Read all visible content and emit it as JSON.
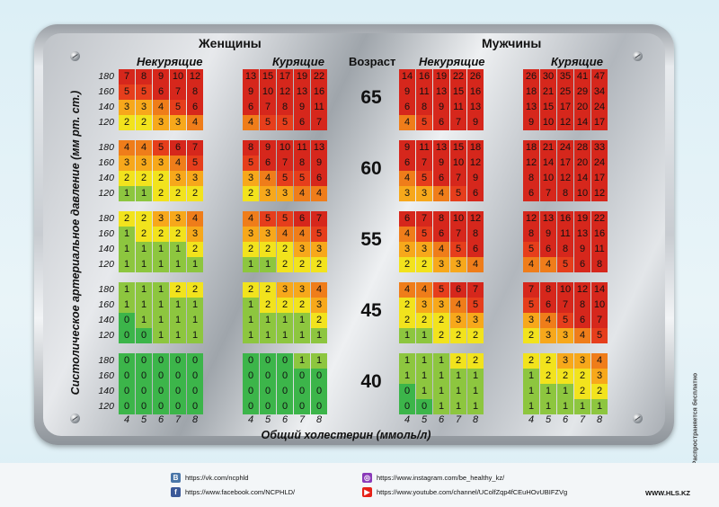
{
  "header": {
    "women": "Женщины",
    "men": "Мужчины",
    "nonsmoking": "Некурящие",
    "smoking": "Курящие",
    "age_label": "Возраст"
  },
  "colors": {
    "0": "#3cb54a",
    "1": "#8dc63f",
    "2": "#f2e31d",
    "3": "#f7a81b",
    "4": "#ef7d1a",
    "5": "#e63e1c",
    "high": "#d6271c"
  },
  "chart_data": {
    "type": "table",
    "xlabel": "Общий холестерин (ммоль/л)",
    "ylabel": "Систолическое артериальное давление (мм рт. ст.)",
    "cholesterol": [
      4,
      5,
      6,
      7,
      8
    ],
    "pressure": [
      180,
      160,
      140,
      120
    ],
    "ages": [
      65,
      60,
      55,
      45,
      40
    ],
    "panels": [
      {
        "group": "women",
        "smoker": false,
        "grids": [
          [
            [
              7,
              8,
              9,
              10,
              12
            ],
            [
              5,
              5,
              6,
              7,
              8
            ],
            [
              3,
              3,
              4,
              5,
              6
            ],
            [
              2,
              2,
              3,
              3,
              4
            ]
          ],
          [
            [
              4,
              4,
              5,
              6,
              7
            ],
            [
              3,
              3,
              3,
              4,
              5
            ],
            [
              2,
              2,
              2,
              3,
              3
            ],
            [
              1,
              1,
              2,
              2,
              2
            ]
          ],
          [
            [
              2,
              2,
              3,
              3,
              4
            ],
            [
              1,
              2,
              2,
              2,
              3
            ],
            [
              1,
              1,
              1,
              1,
              2
            ],
            [
              1,
              1,
              1,
              1,
              1
            ]
          ],
          [
            [
              1,
              1,
              1,
              2,
              2
            ],
            [
              1,
              1,
              1,
              1,
              1
            ],
            [
              0,
              1,
              1,
              1,
              1
            ],
            [
              0,
              0,
              1,
              1,
              1
            ]
          ],
          [
            [
              0,
              0,
              0,
              0,
              0
            ],
            [
              0,
              0,
              0,
              0,
              0
            ],
            [
              0,
              0,
              0,
              0,
              0
            ],
            [
              0,
              0,
              0,
              0,
              0
            ]
          ]
        ]
      },
      {
        "group": "women",
        "smoker": true,
        "grids": [
          [
            [
              13,
              15,
              17,
              19,
              22
            ],
            [
              9,
              10,
              12,
              13,
              16
            ],
            [
              6,
              7,
              8,
              9,
              11
            ],
            [
              4,
              5,
              5,
              6,
              7
            ]
          ],
          [
            [
              8,
              9,
              10,
              11,
              13
            ],
            [
              5,
              6,
              7,
              8,
              9
            ],
            [
              3,
              4,
              5,
              5,
              6
            ],
            [
              2,
              3,
              3,
              4,
              4
            ]
          ],
          [
            [
              4,
              5,
              5,
              6,
              7
            ],
            [
              3,
              3,
              4,
              4,
              5
            ],
            [
              2,
              2,
              2,
              3,
              3
            ],
            [
              1,
              1,
              2,
              2,
              2
            ]
          ],
          [
            [
              2,
              2,
              3,
              3,
              4
            ],
            [
              1,
              2,
              2,
              2,
              3
            ],
            [
              1,
              1,
              1,
              1,
              2
            ],
            [
              1,
              1,
              1,
              1,
              1
            ]
          ],
          [
            [
              0,
              0,
              0,
              1,
              1
            ],
            [
              0,
              0,
              0,
              0,
              0
            ],
            [
              0,
              0,
              0,
              0,
              0
            ],
            [
              0,
              0,
              0,
              0,
              0
            ]
          ]
        ]
      },
      {
        "group": "men",
        "smoker": false,
        "grids": [
          [
            [
              14,
              16,
              19,
              22,
              26
            ],
            [
              9,
              11,
              13,
              15,
              16
            ],
            [
              6,
              8,
              9,
              11,
              13
            ],
            [
              4,
              5,
              6,
              7,
              9
            ]
          ],
          [
            [
              9,
              11,
              13,
              15,
              18
            ],
            [
              6,
              7,
              9,
              10,
              12
            ],
            [
              4,
              5,
              6,
              7,
              9
            ],
            [
              3,
              3,
              4,
              5,
              6
            ]
          ],
          [
            [
              6,
              7,
              8,
              10,
              12
            ],
            [
              4,
              5,
              6,
              7,
              8
            ],
            [
              3,
              3,
              4,
              5,
              6
            ],
            [
              2,
              2,
              3,
              3,
              4
            ]
          ],
          [
            [
              4,
              4,
              5,
              6,
              7
            ],
            [
              2,
              3,
              3,
              4,
              5
            ],
            [
              2,
              2,
              2,
              3,
              3
            ],
            [
              1,
              1,
              2,
              2,
              2
            ]
          ],
          [
            [
              1,
              1,
              1,
              2,
              2
            ],
            [
              1,
              1,
              1,
              1,
              1
            ],
            [
              0,
              1,
              1,
              1,
              1
            ],
            [
              0,
              0,
              1,
              1,
              1
            ]
          ]
        ]
      },
      {
        "group": "men",
        "smoker": true,
        "grids": [
          [
            [
              26,
              30,
              35,
              41,
              47
            ],
            [
              18,
              21,
              25,
              29,
              34
            ],
            [
              13,
              15,
              17,
              20,
              24
            ],
            [
              9,
              10,
              12,
              14,
              17
            ]
          ],
          [
            [
              18,
              21,
              24,
              28,
              33
            ],
            [
              12,
              14,
              17,
              20,
              24
            ],
            [
              8,
              10,
              12,
              14,
              17
            ],
            [
              6,
              7,
              8,
              10,
              12
            ]
          ],
          [
            [
              12,
              13,
              16,
              19,
              22
            ],
            [
              8,
              9,
              11,
              13,
              16
            ],
            [
              5,
              6,
              8,
              9,
              11
            ],
            [
              4,
              4,
              5,
              6,
              8
            ]
          ],
          [
            [
              7,
              8,
              10,
              12,
              14
            ],
            [
              5,
              6,
              7,
              8,
              10
            ],
            [
              3,
              4,
              5,
              6,
              7
            ],
            [
              2,
              3,
              3,
              4,
              5
            ]
          ],
          [
            [
              2,
              2,
              3,
              3,
              4
            ],
            [
              1,
              2,
              2,
              2,
              3
            ],
            [
              1,
              1,
              1,
              2,
              2
            ],
            [
              1,
              1,
              1,
              1,
              1
            ]
          ]
        ]
      }
    ]
  },
  "side_note": "Распространяется бесплатно",
  "footer": {
    "vk": "https://vk.com/ncphld",
    "facebook": "https://www.facebook.com/NCPHLD/",
    "instagram": "https://www.instagram.com/be_healthy_kz/",
    "youtube": "https://www.youtube.com/channel/UColfZqp4fCEuHOvUBIFZVg",
    "site": "WWW.HLS.KZ"
  }
}
